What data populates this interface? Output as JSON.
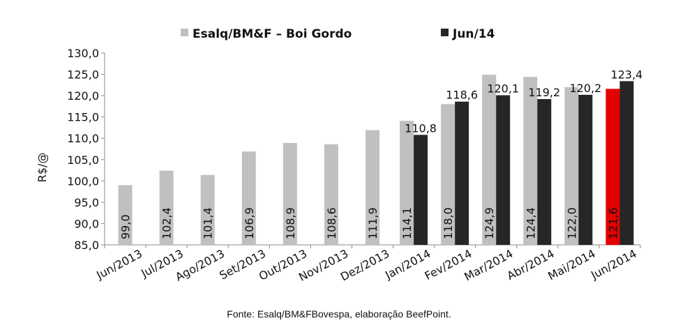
{
  "chart_data": {
    "type": "bar",
    "categories": [
      "Jun/2013",
      "Jul/2013",
      "Ago/2013",
      "Set/2013",
      "Out/2013",
      "Nov/2013",
      "Dez/2013",
      "Jan/2014",
      "Fev/2014",
      "Mar/2014",
      "Abr/2014",
      "Mai/2014",
      "Jun/2014"
    ],
    "series": [
      {
        "name": "Esalq/BM&F – Boi Gordo",
        "color": "#c0c0c0",
        "values": [
          99.0,
          102.4,
          101.4,
          106.9,
          108.9,
          108.6,
          111.9,
          114.1,
          118.0,
          124.9,
          124.4,
          122.0,
          121.6
        ],
        "labels": [
          "99,0",
          "102,4",
          "101,4",
          "106,9",
          "108,9",
          "108,6",
          "111,9",
          "114,1",
          "118,0",
          "124,9",
          "124,4",
          "122,0",
          "121,6"
        ],
        "highlight": {
          "index": 12,
          "color": "#e30000"
        }
      },
      {
        "name": "Jun/14",
        "color": "#262626",
        "values": [
          null,
          null,
          null,
          null,
          null,
          null,
          null,
          110.8,
          118.6,
          120.1,
          119.2,
          120.2,
          123.4
        ],
        "labels": [
          "",
          "",
          "",
          "",
          "",
          "",
          "",
          "110,8",
          "118,6",
          "120,1",
          "119,2",
          "120,2",
          "123,4"
        ]
      }
    ],
    "ylabel": "R$/@",
    "ylim": [
      85,
      130
    ],
    "yticks": [
      "85,0",
      "90,0",
      "95,0",
      "100,0",
      "105,0",
      "110,0",
      "115,0",
      "120,0",
      "125,0",
      "130,0"
    ],
    "legend_position": "top",
    "grid": false
  },
  "footer": {
    "source": "Fonte: Esalq/BM&FBovespa, elaboração BeefPoint."
  }
}
